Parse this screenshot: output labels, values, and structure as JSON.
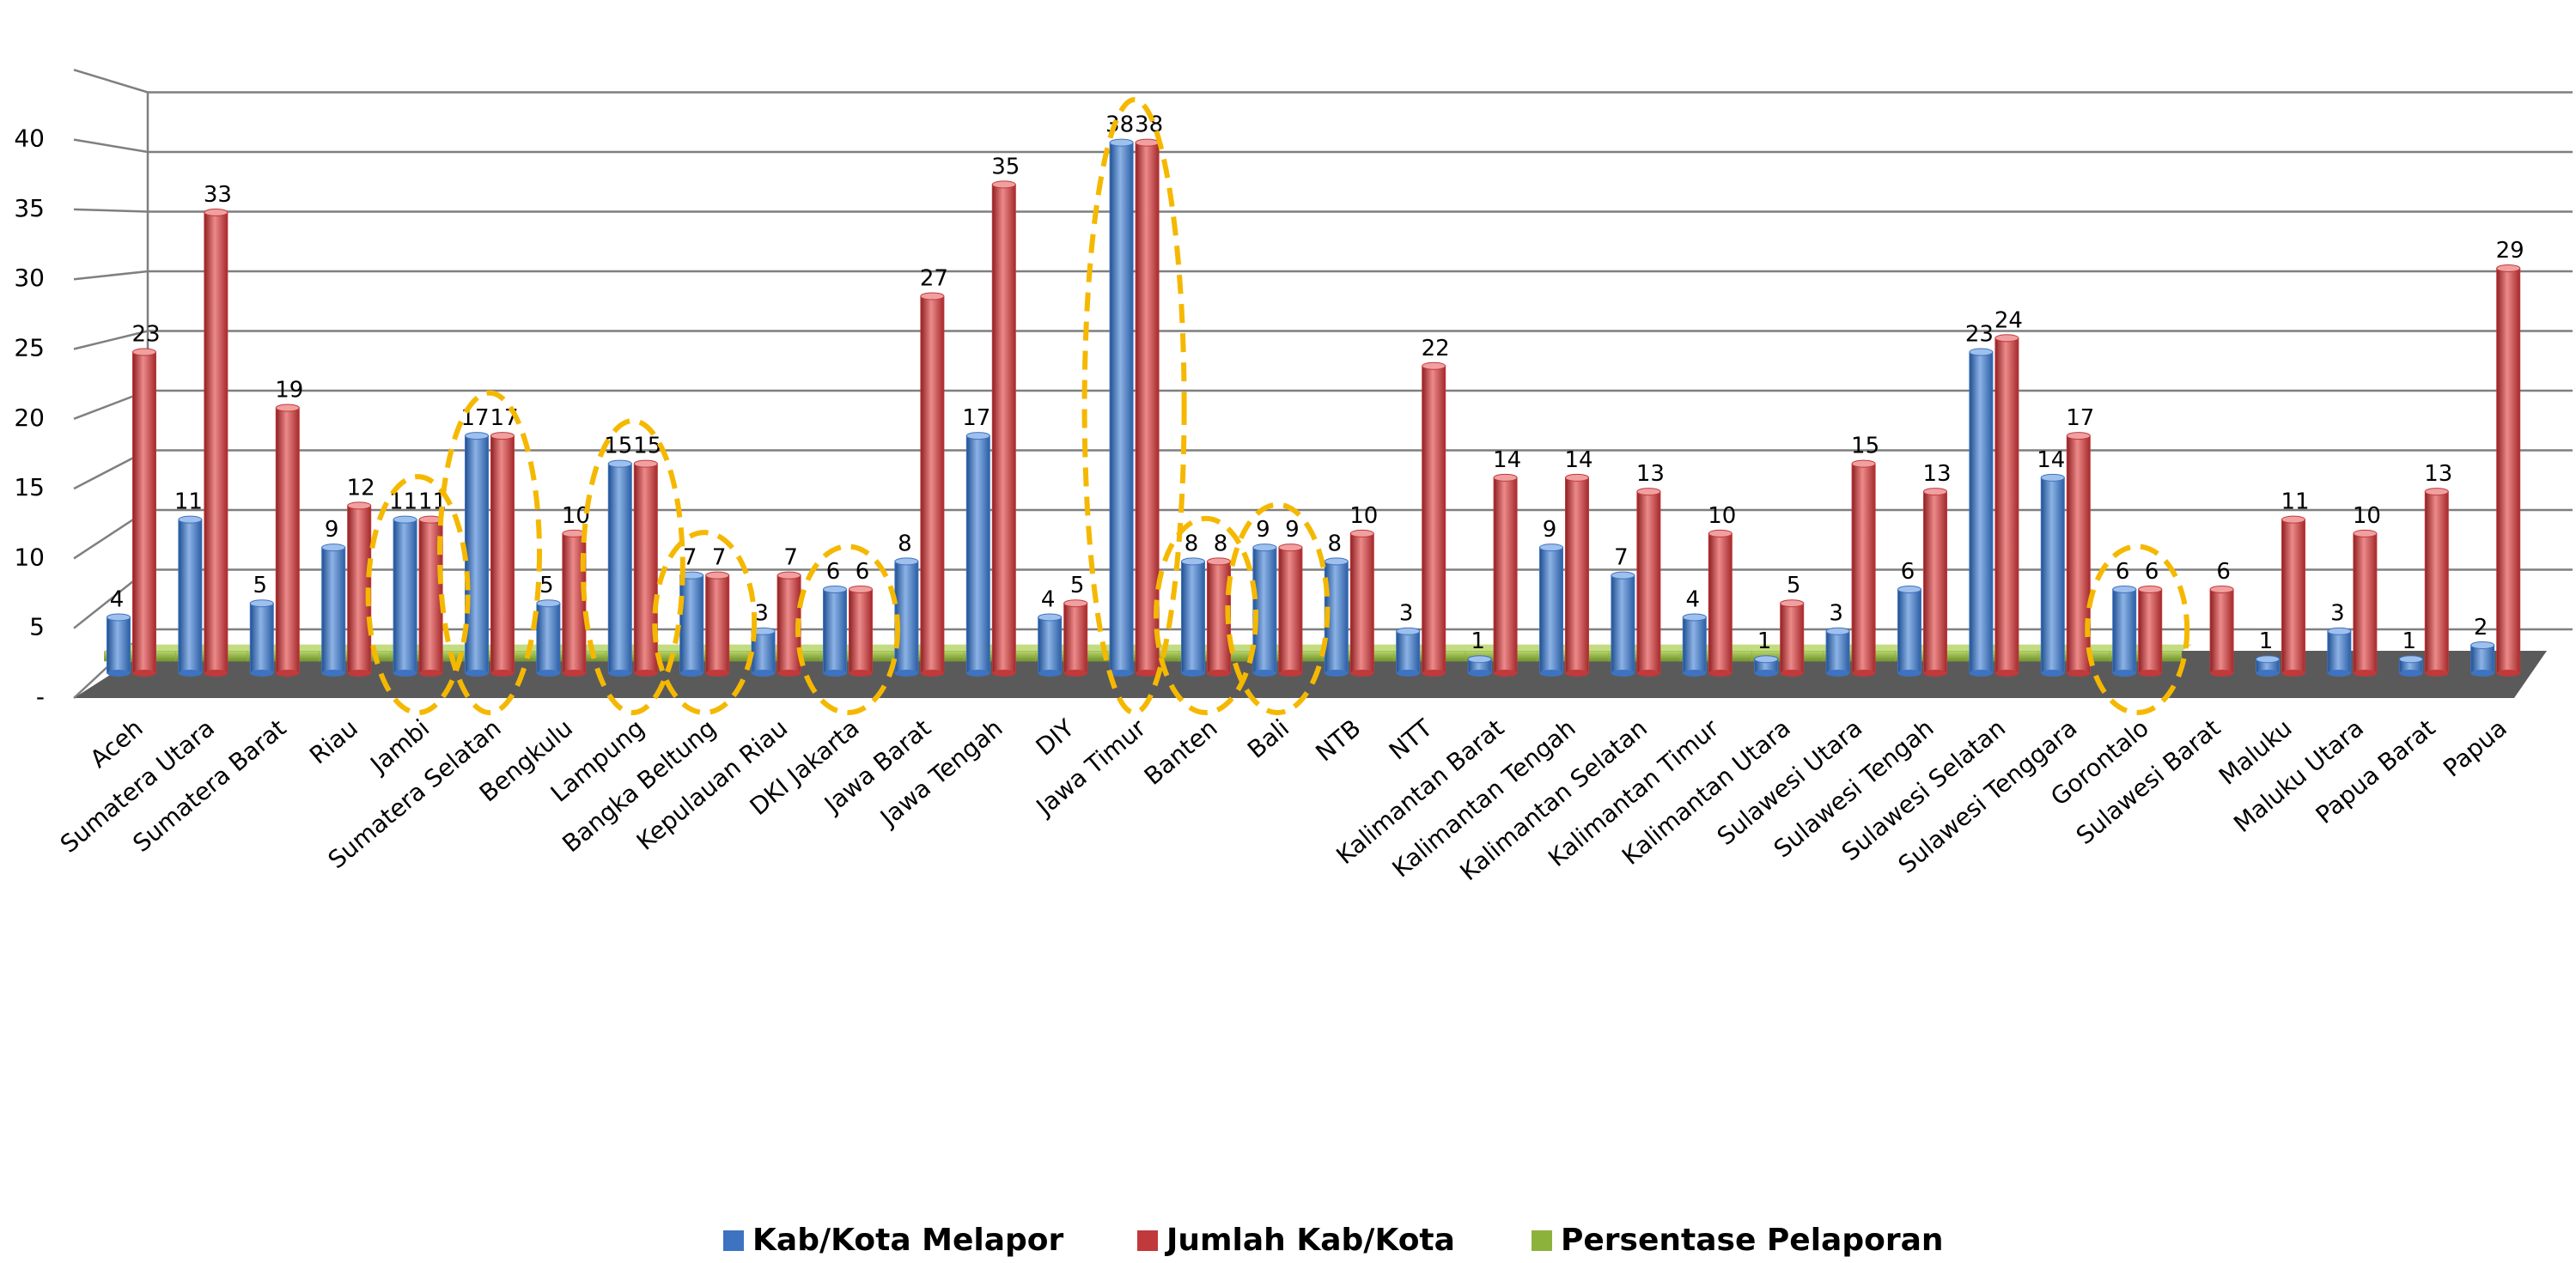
{
  "chart_data": {
    "type": "bar3d",
    "categories": [
      "Aceh",
      "Sumatera Utara",
      "Sumatera Barat",
      "Riau",
      "Jambi",
      "Sumatera Selatan",
      "Bengkulu",
      "Lampung",
      "Bangka Beltung",
      "Kepulauan Riau",
      "DKI Jakarta",
      "Jawa Barat",
      "Jawa Tengah",
      "DIY",
      "Jawa Timur",
      "Banten",
      "Bali",
      "NTB",
      "NTT",
      "Kalimantan Barat",
      "Kalimantan Tengah",
      "Kalimantan Selatan",
      "Kalimantan Timur",
      "Kalimantan Utara",
      "Sulawesi Utara",
      "Sulawesi Tengah",
      "Sulawesi Selatan",
      "Sulawesi Tenggara",
      "Gorontalo",
      "Sulawesi Barat",
      "Maluku",
      "Maluku Utara",
      "Papua Barat",
      "Papua"
    ],
    "series": [
      {
        "name": "Kab/Kota Melapor",
        "color": "#3d73c0",
        "values": [
          4,
          11,
          5,
          9,
          11,
          17,
          5,
          15,
          7,
          3,
          6,
          8,
          17,
          4,
          38,
          8,
          9,
          8,
          3,
          1,
          9,
          7,
          4,
          1,
          3,
          6,
          23,
          14,
          6,
          null,
          1,
          3,
          1,
          2
        ]
      },
      {
        "name": "Jumlah Kab/Kota",
        "color": "#c0393b",
        "values": [
          23,
          33,
          19,
          12,
          11,
          17,
          10,
          15,
          7,
          7,
          6,
          27,
          35,
          5,
          38,
          8,
          9,
          10,
          22,
          14,
          14,
          13,
          10,
          5,
          15,
          13,
          24,
          17,
          6,
          6,
          11,
          10,
          13,
          29
        ]
      },
      {
        "name": "Persentase Pelaporan",
        "color": "#8db23c",
        "values": [
          1,
          1,
          1,
          1,
          1,
          1,
          1,
          1,
          1,
          1,
          1,
          1,
          1,
          1,
          1,
          1,
          1,
          1,
          1,
          1,
          1,
          1,
          1,
          1,
          1,
          1,
          1,
          1,
          1,
          null,
          null,
          null,
          null,
          null
        ]
      }
    ],
    "ylim": [
      0,
      45
    ],
    "yticks": [
      {
        "value": 0,
        "label": "-"
      },
      5,
      10,
      15,
      20,
      25,
      30,
      35,
      40
    ],
    "grid": true,
    "highlight_color": "#f5b800",
    "legend": "bottom"
  }
}
